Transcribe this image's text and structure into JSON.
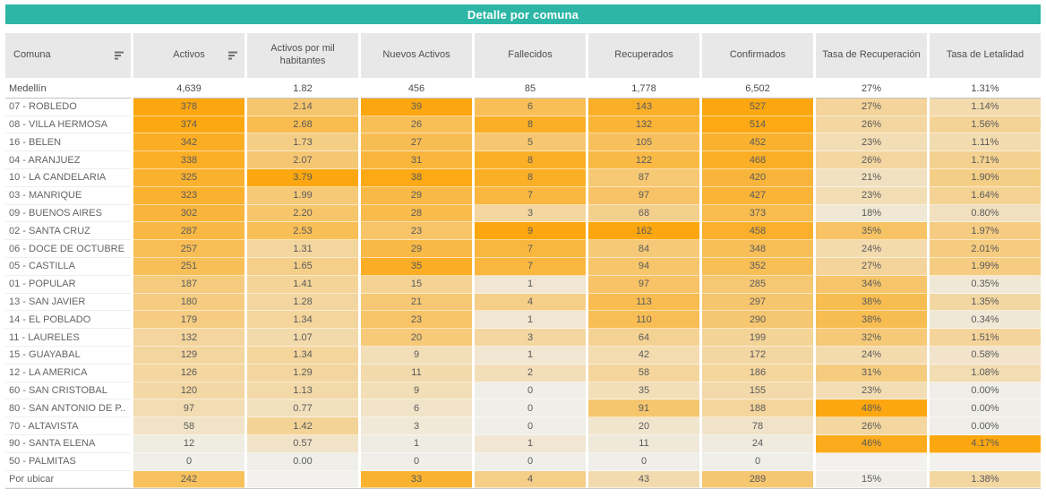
{
  "chart_data": {
    "type": "heatmap-table",
    "title": "Detalle por comuna",
    "columns": [
      {
        "label": "Comuna",
        "sortable": true
      },
      {
        "label": "Activos",
        "sortable": true
      },
      {
        "label": "Activos por mil habitantes",
        "sortable": false
      },
      {
        "label": "Nuevos Activos",
        "sortable": false
      },
      {
        "label": "Fallecidos",
        "sortable": false
      },
      {
        "label": "Recuperados",
        "sortable": false
      },
      {
        "label": "Confirmados",
        "sortable": false
      },
      {
        "label": "Tasa de Recuperación",
        "sortable": false
      },
      {
        "label": "Tasa de Letalidad",
        "sortable": false
      }
    ],
    "total_row": {
      "label": "Medellín",
      "values": [
        "4,639",
        "1.82",
        "456",
        "85",
        "1,778",
        "6,502",
        "27%",
        "1.31%"
      ]
    },
    "rows": [
      {
        "label": "07 - ROBLEDO",
        "values": [
          "378",
          "2.14",
          "39",
          "6",
          "143",
          "527",
          "27%",
          "1.14%"
        ]
      },
      {
        "label": "08 - VILLA HERMOSA",
        "values": [
          "374",
          "2.68",
          "26",
          "8",
          "132",
          "514",
          "26%",
          "1.56%"
        ]
      },
      {
        "label": "16 - BELEN",
        "values": [
          "342",
          "1.73",
          "27",
          "5",
          "105",
          "452",
          "23%",
          "1.11%"
        ]
      },
      {
        "label": "04 - ARANJUEZ",
        "values": [
          "338",
          "2.07",
          "31",
          "8",
          "122",
          "468",
          "26%",
          "1.71%"
        ]
      },
      {
        "label": "10 - LA CANDELARIA",
        "values": [
          "325",
          "3.79",
          "38",
          "8",
          "87",
          "420",
          "21%",
          "1.90%"
        ]
      },
      {
        "label": "03 - MANRIQUE",
        "values": [
          "323",
          "1.99",
          "29",
          "7",
          "97",
          "427",
          "23%",
          "1.64%"
        ]
      },
      {
        "label": "09 - BUENOS AIRES",
        "values": [
          "302",
          "2.20",
          "28",
          "3",
          "68",
          "373",
          "18%",
          "0.80%"
        ]
      },
      {
        "label": "02 - SANTA CRUZ",
        "values": [
          "287",
          "2.53",
          "23",
          "9",
          "162",
          "458",
          "35%",
          "1.97%"
        ]
      },
      {
        "label": "06 - DOCE DE OCTUBRE",
        "values": [
          "257",
          "1.31",
          "29",
          "7",
          "84",
          "348",
          "24%",
          "2.01%"
        ]
      },
      {
        "label": "05 - CASTILLA",
        "values": [
          "251",
          "1.65",
          "35",
          "7",
          "94",
          "352",
          "27%",
          "1.99%"
        ]
      },
      {
        "label": "01 - POPULAR",
        "values": [
          "187",
          "1.41",
          "15",
          "1",
          "97",
          "285",
          "34%",
          "0.35%"
        ]
      },
      {
        "label": "13 - SAN JAVIER",
        "values": [
          "180",
          "1.28",
          "21",
          "4",
          "113",
          "297",
          "38%",
          "1.35%"
        ]
      },
      {
        "label": "14 - EL POBLADO",
        "values": [
          "179",
          "1.34",
          "23",
          "1",
          "110",
          "290",
          "38%",
          "0.34%"
        ]
      },
      {
        "label": "11 - LAURELES",
        "values": [
          "132",
          "1.07",
          "20",
          "3",
          "64",
          "199",
          "32%",
          "1.51%"
        ]
      },
      {
        "label": "15 - GUAYABAL",
        "values": [
          "129",
          "1.34",
          "9",
          "1",
          "42",
          "172",
          "24%",
          "0.58%"
        ]
      },
      {
        "label": "12 - LA AMERICA",
        "values": [
          "126",
          "1.29",
          "11",
          "2",
          "58",
          "186",
          "31%",
          "1.08%"
        ]
      },
      {
        "label": "60 - SAN CRISTOBAL",
        "values": [
          "120",
          "1.13",
          "9",
          "0",
          "35",
          "155",
          "23%",
          "0.00%"
        ]
      },
      {
        "label": "80 - SAN ANTONIO DE P..",
        "values": [
          "97",
          "0.77",
          "6",
          "0",
          "91",
          "188",
          "48%",
          "0.00%"
        ]
      },
      {
        "label": "70 - ALTAVISTA",
        "values": [
          "58",
          "1.42",
          "3",
          "0",
          "20",
          "78",
          "26%",
          "0.00%"
        ]
      },
      {
        "label": "90 - SANTA ELENA",
        "values": [
          "12",
          "0.57",
          "1",
          "1",
          "11",
          "24",
          "46%",
          "4.17%"
        ]
      },
      {
        "label": "50 - PALMITAS",
        "values": [
          "0",
          "0.00",
          "0",
          "0",
          "0",
          "0",
          "",
          ""
        ]
      },
      {
        "label": "Por ubicar",
        "values": [
          "242",
          "",
          "33",
          "4",
          "43",
          "289",
          "15%",
          "1.38%"
        ]
      }
    ],
    "color_scale": {
      "normalization": "per-column min-max",
      "low": "#EFEEE9",
      "high": "#FCA70F",
      "blank": "#F2F1EE"
    },
    "theme": {
      "accent_teal": "#2DB6A6",
      "header_bg": "#E8E8E8",
      "text": "#5A5A5A"
    }
  }
}
